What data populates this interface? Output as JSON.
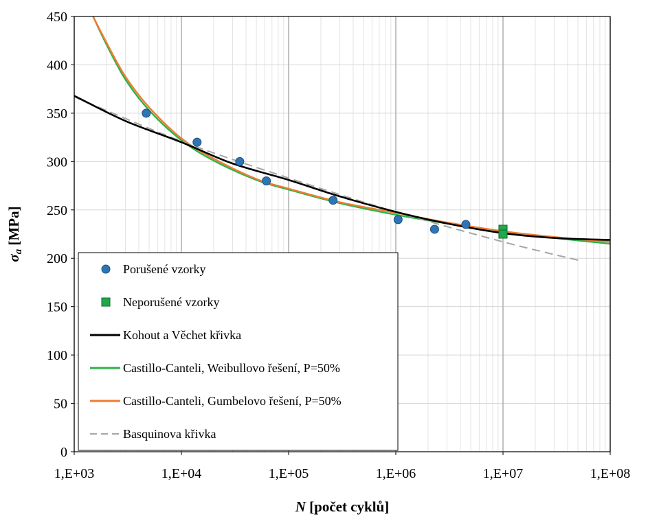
{
  "chart_data": {
    "type": "scatter",
    "title": "",
    "xlabel": {
      "symbol": "N",
      "text": " [počet cyklů]"
    },
    "ylabel": {
      "symbol": "σ",
      "subscript": "a",
      "text": " [MPa]"
    },
    "x_scale": "log",
    "xlim": [
      1000,
      100000000
    ],
    "ylim": [
      0,
      450
    ],
    "x_ticks": [
      {
        "value": 1000,
        "label": "1,E+03"
      },
      {
        "value": 10000,
        "label": "1,E+04"
      },
      {
        "value": 100000,
        "label": "1,E+05"
      },
      {
        "value": 1000000,
        "label": "1,E+06"
      },
      {
        "value": 10000000,
        "label": "1,E+07"
      },
      {
        "value": 100000000,
        "label": "1,E+08"
      }
    ],
    "y_ticks": [
      0,
      50,
      100,
      150,
      200,
      250,
      300,
      350,
      400,
      450
    ],
    "grid": true,
    "legend_position": "bottom-left",
    "series": [
      {
        "name": "Porušené vzorky",
        "kind": "points",
        "marker": "circle",
        "color": "#2e75b6",
        "x": [
          4700,
          14000,
          35000,
          62000,
          260000,
          1050000,
          2300000,
          4500000
        ],
        "y": [
          350,
          320,
          300,
          280,
          260,
          240,
          230,
          235
        ]
      },
      {
        "name": "Neporušené vzorky",
        "kind": "points",
        "marker": "square",
        "color": "#21a84a",
        "x": [
          10000000,
          10000000
        ],
        "y": [
          230,
          225
        ]
      },
      {
        "name": "Kohout a Věchet křivka",
        "kind": "line",
        "color": "#000000",
        "dash": "solid",
        "x": [
          1000,
          3000,
          10000,
          30000,
          100000,
          300000,
          1000000,
          3000000,
          10000000,
          30000000,
          100000000
        ],
        "y": [
          368,
          342,
          320,
          298,
          281,
          264,
          248,
          236,
          226,
          221,
          219
        ]
      },
      {
        "name": "Castillo-Canteli, Weibullovo řešení, P=50%",
        "kind": "line",
        "color": "#2db34a",
        "dash": "solid",
        "x": [
          1500,
          2000,
          3000,
          5000,
          10000,
          20000,
          50000,
          100000,
          300000,
          1000000,
          3000000,
          10000000,
          30000000,
          100000000
        ],
        "y": [
          450,
          421,
          385,
          353,
          322,
          301,
          281,
          271,
          257,
          245,
          236,
          227,
          221,
          215
        ]
      },
      {
        "name": "Castillo-Canteli, Gumbelovo řešení, P=50%",
        "kind": "line",
        "color": "#ed7d31",
        "dash": "solid",
        "x": [
          1500,
          2000,
          3000,
          5000,
          10000,
          20000,
          50000,
          100000,
          300000,
          1000000,
          3000000,
          10000000,
          30000000,
          100000000
        ],
        "y": [
          450,
          423,
          388,
          356,
          324,
          303,
          282,
          272,
          258,
          247,
          237,
          228,
          222,
          217
        ]
      },
      {
        "name": "Basquinova křivka",
        "kind": "line",
        "color": "#a6a6a6",
        "dash": "dashed",
        "x": [
          1000,
          10000,
          100000,
          1000000,
          10000000,
          55000000
        ],
        "y": [
          367,
          321,
          283,
          248,
          217,
          197
        ]
      }
    ]
  }
}
